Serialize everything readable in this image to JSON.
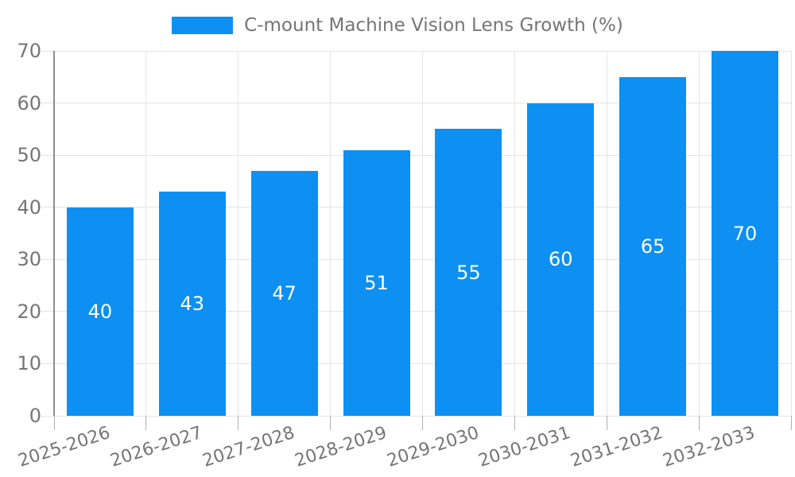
{
  "legend": {
    "label": "C-mount Machine Vision Lens Growth (%)",
    "position": "top"
  },
  "chart_data": {
    "type": "bar",
    "title": "C-mount Machine Vision Lens Growth (%)",
    "categories": [
      "2025-2026",
      "2026-2027",
      "2027-2028",
      "2028-2029",
      "2029-2030",
      "2030-2031",
      "2031-2032",
      "2032-2033"
    ],
    "values": [
      40,
      43,
      47,
      51,
      55,
      60,
      65,
      70
    ],
    "series": [
      {
        "name": "C-mount Machine Vision Lens Growth (%)",
        "values": [
          40,
          43,
          47,
          51,
          55,
          60,
          65,
          70
        ]
      }
    ],
    "xlabel": "",
    "ylabel": "",
    "ylim": [
      0,
      70
    ],
    "yticks": [
      0,
      10,
      20,
      30,
      40,
      50,
      60,
      70
    ],
    "grid": true,
    "legend_position": "top",
    "x_tick_rotation_deg": -18,
    "bar_value_labels_inside": true,
    "colors": {
      "bar": "#0d90f2",
      "bar_label": "#ffffff",
      "axis_text": "#757575",
      "grid_line": "#e4e4e4",
      "axis_line": "#8f8f8f",
      "tick_line": "#b0b0b0",
      "background": "#ffffff"
    }
  }
}
